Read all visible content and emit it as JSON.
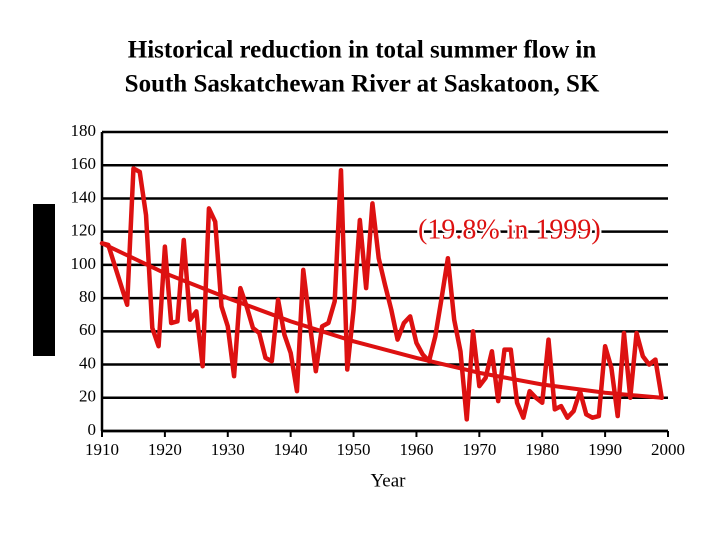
{
  "chart_data": {
    "type": "line",
    "title": [
      "Historical reduction in total summer flow in",
      "South Saskatchewan River at Saskatoon, SK"
    ],
    "x_label": "Year",
    "annotation": "(19.8% in 1999)",
    "x": [
      1910,
      1911,
      1912,
      1913,
      1914,
      1915,
      1916,
      1917,
      1918,
      1919,
      1920,
      1921,
      1922,
      1923,
      1924,
      1925,
      1926,
      1927,
      1928,
      1929,
      1930,
      1931,
      1932,
      1933,
      1934,
      1935,
      1936,
      1937,
      1938,
      1939,
      1940,
      1941,
      1942,
      1943,
      1944,
      1945,
      1946,
      1947,
      1948,
      1949,
      1950,
      1951,
      1952,
      1953,
      1954,
      1955,
      1956,
      1957,
      1958,
      1959,
      1960,
      1961,
      1962,
      1963,
      1964,
      1965,
      1966,
      1967,
      1968,
      1969,
      1970,
      1971,
      1972,
      1973,
      1974,
      1975,
      1976,
      1977,
      1978,
      1979,
      1980,
      1981,
      1982,
      1983,
      1984,
      1985,
      1986,
      1987,
      1988,
      1989,
      1990,
      1991,
      1992,
      1993,
      1994,
      1995,
      1996,
      1997,
      1998,
      1999
    ],
    "series": [
      {
        "color": "#dd1111",
        "values": [
          113,
          112,
          100,
          88,
          76,
          158,
          156,
          130,
          62,
          51,
          111,
          65,
          66,
          115,
          67,
          72,
          39,
          134,
          126,
          75,
          63,
          33,
          86,
          75,
          62,
          59,
          44,
          42,
          79,
          58,
          47,
          24,
          97,
          66,
          36,
          63,
          65,
          78,
          157,
          37,
          73,
          127,
          86,
          137,
          104,
          88,
          73,
          55,
          65,
          69,
          53,
          46,
          42,
          57,
          80,
          104,
          67,
          48,
          7,
          60,
          27,
          32,
          48,
          18,
          49,
          49,
          17,
          8,
          24,
          20,
          17,
          55,
          13,
          15,
          8,
          12,
          24,
          10,
          8,
          9,
          51,
          38,
          9,
          59,
          20,
          59,
          45,
          40,
          43,
          20
        ]
      },
      {
        "color": "#dd1111",
        "x": [
          1910,
          1920,
          1930,
          1940,
          1950,
          1960,
          1970,
          1980,
          1990,
          1999
        ],
        "values": [
          113,
          95,
          80,
          66,
          54,
          44,
          35,
          28,
          23,
          20
        ]
      }
    ],
    "xlim": [
      1910,
      2000
    ],
    "xticks": [
      1910,
      1920,
      1930,
      1940,
      1950,
      1960,
      1970,
      1980,
      1990,
      2000
    ],
    "ylim": [
      0,
      180
    ],
    "yticks": [
      0,
      20,
      40,
      60,
      80,
      100,
      120,
      140,
      160,
      180
    ],
    "grid": true
  }
}
